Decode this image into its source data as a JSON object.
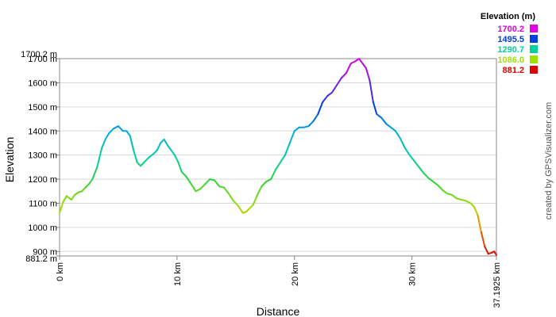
{
  "chart_data": {
    "type": "line",
    "xlabel": "Distance",
    "ylabel": "Elevation",
    "x_unit": "km",
    "y_unit": "m",
    "xlim": [
      0,
      37.1925
    ],
    "ylim": [
      881.2,
      1700.2
    ],
    "x_ticks": [
      {
        "value": 0,
        "label": "0 km"
      },
      {
        "value": 10,
        "label": "10 km"
      },
      {
        "value": 20,
        "label": "20 km"
      },
      {
        "value": 30,
        "label": "30 km"
      },
      {
        "value": 37.1925,
        "label": "37.1925 km"
      }
    ],
    "y_ticks": [
      {
        "value": 881.2,
        "label": "881.2 m"
      },
      {
        "value": 900,
        "label": "900 m"
      },
      {
        "value": 1000,
        "label": "1000 m"
      },
      {
        "value": 1100,
        "label": "1100 m"
      },
      {
        "value": 1200,
        "label": "1200 m"
      },
      {
        "value": 1300,
        "label": "1300 m"
      },
      {
        "value": 1400,
        "label": "1400 m"
      },
      {
        "value": 1500,
        "label": "1500 m"
      },
      {
        "value": 1600,
        "label": "1600 m"
      },
      {
        "value": 1700,
        "label": "1700 m"
      },
      {
        "value": 1700.2,
        "label": "1700.2 m"
      }
    ],
    "grid": "horizontal",
    "legend": {
      "title": "Elevation (m)",
      "placement": "top-right",
      "entries": [
        {
          "label": "1700.2",
          "color": "#e000e0"
        },
        {
          "label": "1495.5",
          "color": "#0040e0"
        },
        {
          "label": "1290.7",
          "color": "#00d0a0"
        },
        {
          "label": "1086.0",
          "color": "#a0e000"
        },
        {
          "label": "881.2",
          "color": "#e00000"
        }
      ]
    },
    "series": [
      {
        "x": [
          0,
          0.3,
          0.6,
          1.0,
          1.3,
          1.6,
          1.9,
          2.2,
          2.5,
          2.8,
          3.2,
          3.6,
          3.9,
          4.2,
          4.6,
          5.0,
          5.4,
          5.7,
          6.0,
          6.3,
          6.6,
          6.9,
          7.2,
          7.6,
          8.0,
          8.3,
          8.6,
          8.9,
          9.2,
          9.5,
          9.8,
          10.1,
          10.4,
          10.8,
          11.2,
          11.6,
          12.0,
          12.4,
          12.8,
          13.2,
          13.6,
          14.0,
          14.4,
          14.8,
          15.2,
          15.6,
          15.9,
          16.2,
          16.5,
          16.8,
          17.2,
          17.6,
          18.0,
          18.4,
          18.8,
          19.2,
          19.6,
          20.0,
          20.4,
          20.8,
          21.2,
          21.6,
          22.0,
          22.4,
          22.8,
          23.2,
          23.6,
          24.0,
          24.4,
          24.8,
          25.2,
          25.5,
          25.8,
          26.1,
          26.4,
          26.7,
          27.0,
          27.4,
          27.8,
          28.2,
          28.6,
          29.0,
          29.4,
          29.8,
          30.2,
          30.6,
          31.0,
          31.4,
          31.8,
          32.2,
          32.6,
          33.0,
          33.4,
          33.8,
          34.2,
          34.6,
          35.0,
          35.3,
          35.6,
          35.9,
          36.2,
          36.5,
          36.8,
          37.0,
          37.1925
        ],
        "y": [
          1060,
          1105,
          1130,
          1115,
          1135,
          1145,
          1150,
          1165,
          1180,
          1200,
          1250,
          1330,
          1365,
          1390,
          1410,
          1420,
          1400,
          1400,
          1380,
          1320,
          1270,
          1255,
          1270,
          1290,
          1305,
          1320,
          1350,
          1365,
          1340,
          1320,
          1300,
          1270,
          1230,
          1210,
          1180,
          1150,
          1160,
          1180,
          1200,
          1195,
          1170,
          1165,
          1140,
          1110,
          1090,
          1060,
          1065,
          1080,
          1095,
          1130,
          1170,
          1190,
          1200,
          1240,
          1270,
          1300,
          1350,
          1400,
          1415,
          1415,
          1420,
          1440,
          1470,
          1520,
          1545,
          1560,
          1590,
          1620,
          1640,
          1680,
          1690,
          1700,
          1680,
          1660,
          1610,
          1520,
          1470,
          1455,
          1430,
          1415,
          1400,
          1370,
          1330,
          1300,
          1275,
          1250,
          1225,
          1205,
          1190,
          1175,
          1155,
          1140,
          1135,
          1120,
          1115,
          1110,
          1100,
          1085,
          1050,
          980,
          920,
          890,
          895,
          900,
          885
        ]
      }
    ]
  },
  "credit": "created by GPSVisualizer.com"
}
